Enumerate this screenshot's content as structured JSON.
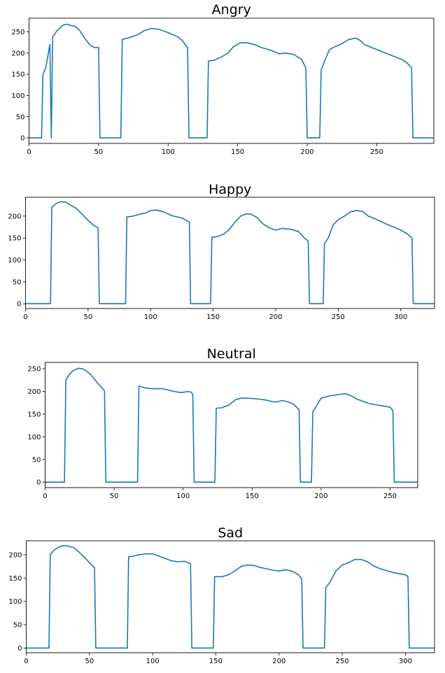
{
  "chart_data": [
    {
      "type": "line",
      "title": "Angry",
      "xlim": [
        0,
        291
      ],
      "ylim": [
        -13,
        282
      ],
      "xticks": [
        0,
        50,
        100,
        150,
        200,
        250
      ],
      "yticks": [
        0,
        50,
        100,
        150,
        200,
        250
      ],
      "color": "#1f77b4",
      "points": [
        [
          0,
          0
        ],
        [
          9,
          0
        ],
        [
          10,
          150
        ],
        [
          12,
          165
        ],
        [
          15,
          220
        ],
        [
          16,
          0
        ],
        [
          17,
          238
        ],
        [
          20,
          252
        ],
        [
          24,
          265
        ],
        [
          27,
          268
        ],
        [
          30,
          265
        ],
        [
          33,
          263
        ],
        [
          36,
          255
        ],
        [
          40,
          235
        ],
        [
          44,
          218
        ],
        [
          47,
          213
        ],
        [
          50,
          213
        ],
        [
          51,
          0
        ],
        [
          66,
          0
        ],
        [
          67,
          232
        ],
        [
          72,
          236
        ],
        [
          78,
          243
        ],
        [
          83,
          253
        ],
        [
          88,
          258
        ],
        [
          93,
          256
        ],
        [
          100,
          248
        ],
        [
          107,
          238
        ],
        [
          110,
          230
        ],
        [
          114,
          213
        ],
        [
          115,
          0
        ],
        [
          128,
          0
        ],
        [
          129,
          181
        ],
        [
          133,
          183
        ],
        [
          138,
          190
        ],
        [
          143,
          200
        ],
        [
          147,
          215
        ],
        [
          152,
          224
        ],
        [
          157,
          224
        ],
        [
          162,
          220
        ],
        [
          167,
          213
        ],
        [
          175,
          205
        ],
        [
          180,
          198
        ],
        [
          184,
          200
        ],
        [
          190,
          197
        ],
        [
          196,
          185
        ],
        [
          199,
          165
        ],
        [
          200,
          0
        ],
        [
          209,
          0
        ],
        [
          210,
          160
        ],
        [
          213,
          185
        ],
        [
          216,
          208
        ],
        [
          220,
          215
        ],
        [
          225,
          222
        ],
        [
          230,
          232
        ],
        [
          235,
          235
        ],
        [
          238,
          230
        ],
        [
          241,
          220
        ],
        [
          250,
          208
        ],
        [
          260,
          195
        ],
        [
          268,
          185
        ],
        [
          272,
          176
        ],
        [
          275,
          165
        ],
        [
          276,
          0
        ],
        [
          291,
          0
        ]
      ]
    },
    {
      "type": "line",
      "title": "Happy",
      "xlim": [
        0,
        327
      ],
      "ylim": [
        -11,
        243
      ],
      "xticks": [
        0,
        50,
        100,
        150,
        200,
        250,
        300
      ],
      "yticks": [
        0,
        50,
        100,
        150,
        200
      ],
      "color": "#1f77b4",
      "points": [
        [
          0,
          0
        ],
        [
          20,
          0
        ],
        [
          21,
          220
        ],
        [
          24,
          228
        ],
        [
          28,
          233
        ],
        [
          32,
          232
        ],
        [
          36,
          225
        ],
        [
          40,
          219
        ],
        [
          45,
          205
        ],
        [
          50,
          190
        ],
        [
          54,
          180
        ],
        [
          57,
          175
        ],
        [
          58,
          173
        ],
        [
          59,
          0
        ],
        [
          80,
          0
        ],
        [
          81,
          198
        ],
        [
          86,
          200
        ],
        [
          92,
          205
        ],
        [
          96,
          207
        ],
        [
          100,
          213
        ],
        [
          105,
          214
        ],
        [
          110,
          210
        ],
        [
          118,
          200
        ],
        [
          125,
          196
        ],
        [
          131,
          186
        ],
        [
          132,
          0
        ],
        [
          148,
          0
        ],
        [
          149,
          152
        ],
        [
          153,
          153
        ],
        [
          158,
          158
        ],
        [
          163,
          170
        ],
        [
          168,
          188
        ],
        [
          172,
          200
        ],
        [
          176,
          205
        ],
        [
          180,
          205
        ],
        [
          185,
          197
        ],
        [
          190,
          182
        ],
        [
          195,
          173
        ],
        [
          200,
          168
        ],
        [
          205,
          172
        ],
        [
          212,
          170
        ],
        [
          218,
          165
        ],
        [
          223,
          150
        ],
        [
          226,
          143
        ],
        [
          227,
          0
        ],
        [
          238,
          0
        ],
        [
          239,
          137
        ],
        [
          242,
          150
        ],
        [
          246,
          180
        ],
        [
          250,
          192
        ],
        [
          255,
          200
        ],
        [
          260,
          210
        ],
        [
          265,
          213
        ],
        [
          270,
          210
        ],
        [
          274,
          200
        ],
        [
          280,
          193
        ],
        [
          290,
          180
        ],
        [
          300,
          168
        ],
        [
          305,
          160
        ],
        [
          309,
          150
        ],
        [
          310,
          0
        ],
        [
          327,
          0
        ]
      ]
    },
    {
      "type": "line",
      "title": "Neutral",
      "xlim": [
        0,
        270
      ],
      "ylim": [
        -12,
        264
      ],
      "xticks": [
        0,
        50,
        100,
        150,
        200,
        250
      ],
      "yticks": [
        0,
        50,
        100,
        150,
        200,
        250
      ],
      "color": "#1f77b4",
      "points": [
        [
          0,
          0
        ],
        [
          14,
          0
        ],
        [
          15,
          225
        ],
        [
          17,
          235
        ],
        [
          20,
          245
        ],
        [
          24,
          251
        ],
        [
          27,
          250
        ],
        [
          30,
          245
        ],
        [
          33,
          237
        ],
        [
          37,
          222
        ],
        [
          41,
          208
        ],
        [
          43,
          202
        ],
        [
          44,
          0
        ],
        [
          67,
          0
        ],
        [
          68,
          212
        ],
        [
          72,
          208
        ],
        [
          77,
          206
        ],
        [
          85,
          206
        ],
        [
          92,
          201
        ],
        [
          97,
          198
        ],
        [
          100,
          198
        ],
        [
          104,
          200
        ],
        [
          106,
          198
        ],
        [
          107,
          193
        ],
        [
          108,
          0
        ],
        [
          123,
          0
        ],
        [
          124,
          163
        ],
        [
          128,
          164
        ],
        [
          133,
          170
        ],
        [
          138,
          182
        ],
        [
          142,
          185
        ],
        [
          147,
          185
        ],
        [
          155,
          183
        ],
        [
          160,
          181
        ],
        [
          165,
          177
        ],
        [
          168,
          177
        ],
        [
          172,
          180
        ],
        [
          176,
          177
        ],
        [
          180,
          172
        ],
        [
          183,
          163
        ],
        [
          184,
          160
        ],
        [
          185,
          0
        ],
        [
          193,
          0
        ],
        [
          194,
          155
        ],
        [
          197,
          170
        ],
        [
          200,
          185
        ],
        [
          206,
          190
        ],
        [
          212,
          193
        ],
        [
          218,
          195
        ],
        [
          222,
          190
        ],
        [
          226,
          183
        ],
        [
          235,
          173
        ],
        [
          245,
          168
        ],
        [
          250,
          165
        ],
        [
          252,
          158
        ],
        [
          253,
          0
        ],
        [
          270,
          0
        ]
      ]
    },
    {
      "type": "line",
      "title": "Sad",
      "xlim": [
        0,
        323
      ],
      "ylim": [
        -10,
        230
      ],
      "xticks": [
        0,
        50,
        100,
        150,
        200,
        250,
        300
      ],
      "yticks": [
        0,
        50,
        100,
        150,
        200
      ],
      "color": "#1f77b4",
      "points": [
        [
          0,
          0
        ],
        [
          18,
          0
        ],
        [
          19,
          200
        ],
        [
          22,
          210
        ],
        [
          26,
          217
        ],
        [
          30,
          220
        ],
        [
          34,
          218
        ],
        [
          38,
          215
        ],
        [
          42,
          205
        ],
        [
          46,
          195
        ],
        [
          50,
          183
        ],
        [
          53,
          175
        ],
        [
          54,
          173
        ],
        [
          55,
          0
        ],
        [
          80,
          0
        ],
        [
          81,
          196
        ],
        [
          85,
          197
        ],
        [
          89,
          200
        ],
        [
          95,
          202
        ],
        [
          100,
          202
        ],
        [
          105,
          197
        ],
        [
          110,
          192
        ],
        [
          115,
          187
        ],
        [
          120,
          185
        ],
        [
          125,
          186
        ],
        [
          128,
          183
        ],
        [
          130,
          181
        ],
        [
          131,
          0
        ],
        [
          148,
          0
        ],
        [
          149,
          153
        ],
        [
          155,
          153
        ],
        [
          160,
          157
        ],
        [
          165,
          165
        ],
        [
          170,
          175
        ],
        [
          175,
          178
        ],
        [
          180,
          177
        ],
        [
          185,
          173
        ],
        [
          190,
          170
        ],
        [
          195,
          167
        ],
        [
          200,
          165
        ],
        [
          205,
          168
        ],
        [
          210,
          165
        ],
        [
          215,
          158
        ],
        [
          218,
          148
        ],
        [
          219,
          0
        ],
        [
          236,
          0
        ],
        [
          237,
          130
        ],
        [
          240,
          140
        ],
        [
          245,
          165
        ],
        [
          250,
          178
        ],
        [
          255,
          183
        ],
        [
          260,
          190
        ],
        [
          265,
          190
        ],
        [
          270,
          185
        ],
        [
          275,
          176
        ],
        [
          280,
          170
        ],
        [
          290,
          162
        ],
        [
          300,
          157
        ],
        [
          302,
          153
        ],
        [
          303,
          0
        ],
        [
          323,
          0
        ]
      ]
    }
  ]
}
